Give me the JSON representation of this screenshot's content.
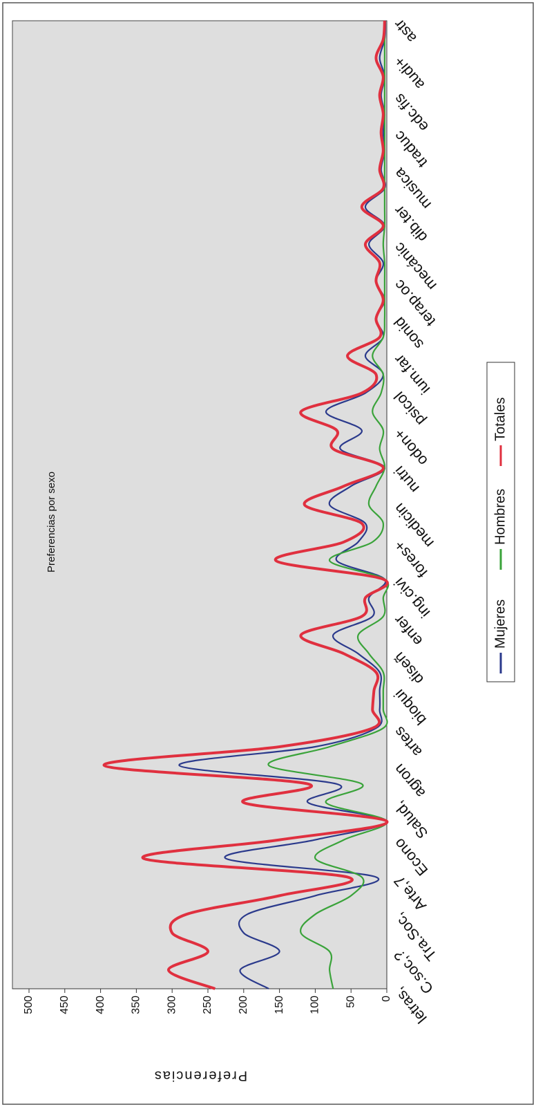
{
  "chart_data": {
    "type": "line",
    "title": "Preferencias por sexo",
    "y_label": "Preferencias",
    "categories": [
      "letras,",
      null,
      "C.soc,?",
      null,
      "Tra.Soc,",
      null,
      "Arte,7",
      null,
      "Econo",
      null,
      "Salud,",
      null,
      "agron",
      null,
      "artes",
      null,
      "bioqui",
      null,
      "diseñ",
      null,
      "enfer",
      null,
      "ing.civi",
      null,
      "fores+",
      null,
      "medicin",
      null,
      "nutri",
      null,
      "odon+",
      null,
      "psicol",
      null,
      "ium.far",
      null,
      "sonid",
      null,
      "terap.oc",
      null,
      "mecánic",
      null,
      "dib.ter",
      null,
      "musica",
      null,
      "traduc",
      null,
      "edc.fis",
      null,
      "audi+",
      null,
      "astr"
    ],
    "series": [
      {
        "name": "Mujeres",
        "color": "#2b3a8c",
        "values": [
          165,
          205,
          150,
          200,
          195,
          100,
          15,
          225,
          100,
          0,
          110,
          70,
          290,
          100,
          15,
          10,
          10,
          10,
          40,
          75,
          20,
          25,
          3,
          70,
          40,
          30,
          80,
          50,
          3,
          65,
          35,
          85,
          30,
          5,
          30,
          5,
          15,
          3,
          15,
          5,
          25,
          3,
          30,
          3,
          8,
          3,
          5,
          3,
          8,
          3,
          10,
          3,
          2
        ]
      },
      {
        "name": "Hombres",
        "color": "#3aa33a",
        "values": [
          75,
          80,
          80,
          120,
          100,
          50,
          35,
          100,
          60,
          0,
          85,
          35,
          165,
          80,
          5,
          5,
          5,
          5,
          25,
          40,
          5,
          5,
          3,
          80,
          20,
          5,
          25,
          15,
          3,
          10,
          5,
          20,
          8,
          5,
          20,
          5,
          3,
          3,
          3,
          3,
          5,
          3,
          3,
          3,
          3,
          3,
          3,
          3,
          3,
          3,
          3,
          3,
          3
        ]
      },
      {
        "name": "Totales",
        "color": "#e0303f",
        "values": [
          240,
          305,
          250,
          300,
          280,
          150,
          55,
          340,
          150,
          0,
          200,
          110,
          395,
          150,
          20,
          20,
          18,
          15,
          60,
          120,
          35,
          30,
          5,
          155,
          60,
          35,
          115,
          60,
          5,
          75,
          70,
          120,
          35,
          15,
          55,
          10,
          15,
          5,
          15,
          10,
          30,
          5,
          35,
          5,
          10,
          5,
          8,
          5,
          10,
          5,
          15,
          5,
          3
        ]
      }
    ],
    "ylim": [
      0,
      500
    ],
    "yticks": [
      0,
      50,
      100,
      150,
      200,
      250,
      300,
      350,
      400,
      450,
      500
    ],
    "grid": false,
    "legend": "bottom"
  }
}
